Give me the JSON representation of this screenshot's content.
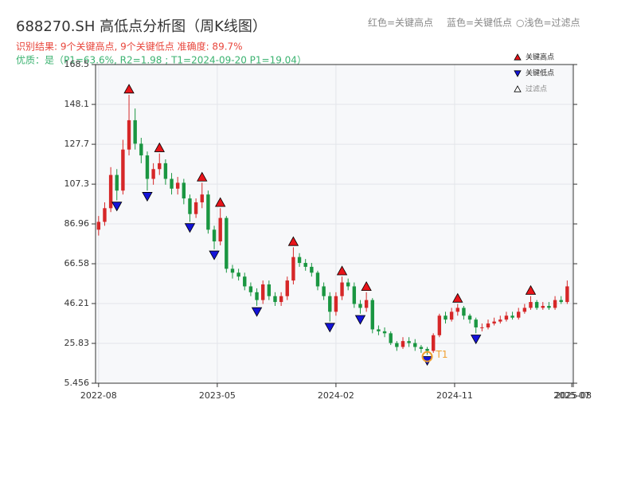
{
  "chart_data": {
    "type": "candlestick",
    "title": "688270.SH 高低点分析图（周K线图）",
    "subtitle": "识别结果: 9个关键高点, 9个关键低点  准确度: 89.7%",
    "quality": "优质：是（P1=63.6%, R2=1.98 ; T1=2024-09-20 P1=19.04）",
    "top_legend": [
      "红色=关键高点",
      "蓝色=关键低点",
      "○浅色=过滤点"
    ],
    "up_color": "#d62728",
    "down_color": "#1a9641",
    "x": [
      0,
      2,
      4,
      6,
      8,
      10,
      12,
      14,
      16,
      18,
      20,
      22,
      24,
      26,
      28,
      30,
      32,
      34,
      36,
      38,
      40,
      42,
      44,
      46,
      48,
      50,
      52,
      54,
      56,
      58,
      60,
      62,
      64,
      66,
      68,
      70,
      72,
      74,
      76,
      78,
      80,
      82,
      84,
      86,
      88,
      90,
      92,
      94,
      96,
      98,
      100,
      102,
      104,
      106,
      108,
      110,
      112,
      114,
      116,
      118,
      120,
      122,
      124,
      126,
      128,
      130,
      132,
      134,
      136,
      138,
      140,
      142,
      144,
      146,
      148,
      150,
      152,
      154
    ],
    "open": [
      84,
      88,
      95,
      112,
      104,
      125,
      140,
      128,
      122,
      110,
      115,
      118,
      110,
      105,
      108,
      100,
      92,
      98,
      102,
      84,
      78,
      90,
      64,
      62,
      60,
      55,
      52,
      48,
      56,
      50,
      47,
      50,
      58,
      70,
      67,
      65,
      62,
      55,
      50,
      42,
      50,
      57,
      55,
      46,
      44,
      48,
      33,
      32,
      31,
      26,
      24,
      27,
      26,
      24,
      23,
      22,
      30,
      40,
      38,
      42,
      44,
      40,
      38,
      34,
      34,
      36,
      37,
      38,
      40,
      39,
      42,
      44,
      47,
      44,
      45,
      44,
      48,
      47
    ],
    "high": [
      91,
      98,
      116,
      115,
      130,
      153,
      146,
      131,
      124,
      118,
      123,
      120,
      113,
      111,
      110,
      102,
      100,
      108,
      104,
      86,
      95,
      91,
      66,
      64,
      62,
      57,
      54,
      58,
      58,
      52,
      52,
      60,
      75,
      72,
      69,
      67,
      63,
      57,
      52,
      52,
      60,
      59,
      57,
      48,
      52,
      49,
      35,
      34,
      32,
      27,
      29,
      29,
      28,
      25,
      24,
      31,
      41,
      42,
      44,
      46,
      45,
      41,
      39,
      36,
      38,
      39,
      40,
      42,
      42,
      44,
      46,
      50,
      48,
      47,
      47,
      50,
      50,
      58
    ],
    "low": [
      81,
      86,
      93,
      99,
      102,
      122,
      125,
      118,
      104,
      107,
      112,
      107,
      102,
      102,
      97,
      88,
      90,
      95,
      82,
      74,
      76,
      62,
      59,
      58,
      53,
      50,
      45,
      46,
      48,
      45,
      45,
      48,
      56,
      65,
      63,
      60,
      53,
      48,
      37,
      40,
      48,
      53,
      44,
      41,
      42,
      31,
      30,
      29,
      25,
      22,
      23,
      24,
      22,
      21,
      20,
      21,
      29,
      36,
      37,
      40,
      38,
      36,
      31,
      32,
      33,
      35,
      36,
      37,
      38,
      38,
      41,
      43,
      43,
      43,
      43,
      43,
      46,
      46
    ],
    "close": [
      88,
      95,
      112,
      104,
      125,
      140,
      128,
      122,
      110,
      115,
      118,
      110,
      105,
      108,
      100,
      92,
      98,
      102,
      84,
      78,
      90,
      64,
      62,
      60,
      55,
      52,
      48,
      56,
      50,
      47,
      50,
      58,
      70,
      67,
      65,
      62,
      55,
      50,
      42,
      50,
      57,
      55,
      46,
      44,
      48,
      33,
      32,
      31,
      26,
      24,
      27,
      26,
      24,
      23,
      22,
      30,
      40,
      38,
      42,
      44,
      40,
      38,
      34,
      34,
      36,
      37,
      38,
      40,
      39,
      42,
      44,
      47,
      44,
      45,
      44,
      48,
      47,
      55
    ],
    "markers": [
      {
        "name": "关键高点",
        "color": "#e8141a",
        "dir": "up",
        "x": [
          10,
          20,
          34,
          40,
          64,
          80,
          88,
          118,
          142
        ],
        "values": [
          153,
          123,
          108,
          95,
          75,
          60,
          52,
          46,
          50
        ]
      },
      {
        "name": "关键低点",
        "color": "#1414d8",
        "dir": "down",
        "x": [
          6,
          16,
          30,
          38,
          52,
          76,
          86,
          108,
          124
        ],
        "values": [
          99,
          104,
          88,
          74,
          45,
          37,
          41,
          20,
          31
        ]
      },
      {
        "name": "过滤点",
        "color": "#ffffff",
        "dir": "up",
        "x": [],
        "values": []
      }
    ],
    "annotation": {
      "label": "T1",
      "x": 108,
      "value": 19.04,
      "color": "#f0a030"
    },
    "xlim": [
      -1,
      156
    ],
    "xticks": [
      {
        "value": 0,
        "label": "2022-08"
      },
      {
        "value": 39,
        "label": "2023-05"
      },
      {
        "value": 78,
        "label": "2024-02"
      },
      {
        "value": 117,
        "label": "2024-11"
      },
      {
        "value": 155.5,
        "label": "2025-07"
      },
      {
        "value": 156,
        "label": "2025-08"
      }
    ],
    "ylim": [
      5.456,
      168.5
    ],
    "yticks": [
      5.456,
      25.83,
      46.21,
      66.58,
      86.96,
      107.3,
      127.7,
      148.1,
      168.5
    ],
    "grid": true
  }
}
